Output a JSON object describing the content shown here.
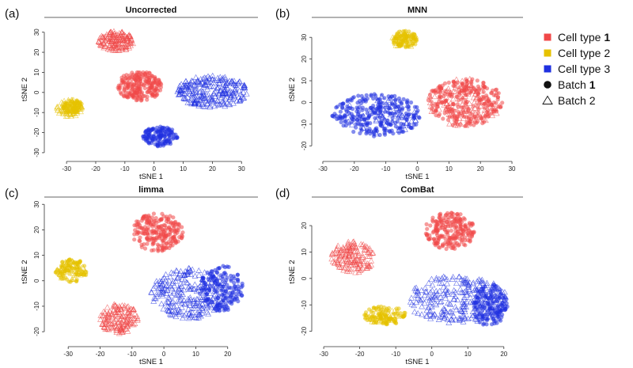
{
  "colors": {
    "cell_type_1": "#f04848",
    "cell_type_2": "#e6c200",
    "cell_type_3": "#1f30e0",
    "batch": "#111111",
    "axis": "#333333"
  },
  "legend": [
    {
      "kind": "cell",
      "group": "cell_type_1",
      "text": "Cell type",
      "num": "1",
      "icon": "red-square-icon"
    },
    {
      "kind": "cell",
      "group": "cell_type_2",
      "text": "Cell type 2",
      "num": "",
      "icon": "yellow-square-icon"
    },
    {
      "kind": "cell",
      "group": "cell_type_3",
      "text": "Cell type 3",
      "num": "",
      "icon": "blue-square-icon"
    },
    {
      "kind": "batch1",
      "group": "batch",
      "text": "Batch",
      "num": "1",
      "icon": "filled-circle-icon"
    },
    {
      "kind": "batch2",
      "group": "batch",
      "text": "Batch 2",
      "num": "",
      "icon": "open-triangle-icon"
    }
  ],
  "chart_data": [
    {
      "type": "scatter",
      "letter": "(a)",
      "title": "Uncorrected",
      "xlabel": "tSNE 1",
      "ylabel": "tSNE 2",
      "xlim": [
        -36,
        34
      ],
      "ylim": [
        -32,
        35
      ],
      "xticks": [
        -30,
        -20,
        -10,
        0,
        10,
        20,
        30
      ],
      "yticks": [
        -30,
        -20,
        -10,
        0,
        10,
        20,
        30
      ],
      "clusters": [
        {
          "cell_type": 1,
          "batch": 2,
          "cx": -13,
          "cy": 25.5,
          "rx": 6,
          "ry": 5,
          "n": 150
        },
        {
          "cell_type": 1,
          "batch": 1,
          "cx": -5,
          "cy": 3,
          "rx": 7.5,
          "ry": 7.5,
          "n": 220
        },
        {
          "cell_type": 2,
          "batch": 2,
          "cx": -29,
          "cy": -8,
          "rx": 4.5,
          "ry": 4.5,
          "n": 70
        },
        {
          "cell_type": 2,
          "batch": 1,
          "cx": -28,
          "cy": -7,
          "rx": 3.5,
          "ry": 3.5,
          "n": 70
        },
        {
          "cell_type": 3,
          "batch": 2,
          "cx": 20,
          "cy": 0.5,
          "rx": 12,
          "ry": 8,
          "n": 260
        },
        {
          "cell_type": 3,
          "batch": 1,
          "cx": 2,
          "cy": -22,
          "rx": 6,
          "ry": 5,
          "n": 140
        }
      ]
    },
    {
      "type": "scatter",
      "letter": "(b)",
      "title": "MNN",
      "xlabel": "tSNE 1",
      "ylabel": "tSNE 2",
      "xlim": [
        -32,
        32
      ],
      "ylim": [
        -25,
        37
      ],
      "xticks": [
        -30,
        -20,
        -10,
        0,
        10,
        20,
        30
      ],
      "yticks": [
        -20,
        -10,
        0,
        10,
        20,
        30
      ],
      "clusters": [
        {
          "cell_type": 2,
          "batch": 1,
          "cx": -4,
          "cy": 29,
          "rx": 4,
          "ry": 4,
          "n": 90
        },
        {
          "cell_type": 2,
          "batch": 2,
          "cx": -4,
          "cy": 29,
          "rx": 4,
          "ry": 4,
          "n": 30
        },
        {
          "cell_type": 1,
          "batch": 1,
          "cx": 15,
          "cy": 0,
          "rx": 12,
          "ry": 11,
          "n": 260
        },
        {
          "cell_type": 1,
          "batch": 2,
          "cx": 15,
          "cy": 0,
          "rx": 12,
          "ry": 11,
          "n": 90
        },
        {
          "cell_type": 3,
          "batch": 1,
          "cx": -13,
          "cy": -6,
          "rx": 14,
          "ry": 10,
          "n": 260
        },
        {
          "cell_type": 3,
          "batch": 2,
          "cx": -12,
          "cy": -6,
          "rx": 12,
          "ry": 9,
          "n": 60
        }
      ]
    },
    {
      "type": "scatter",
      "letter": "(c)",
      "title": "limma",
      "xlabel": "tSNE 1",
      "ylabel": "tSNE 2",
      "xlim": [
        -36,
        28
      ],
      "ylim": [
        -24,
        31
      ],
      "xticks": [
        -30,
        -20,
        -10,
        0,
        10,
        20
      ],
      "yticks": [
        -20,
        -10,
        0,
        10,
        20,
        30
      ],
      "clusters": [
        {
          "cell_type": 1,
          "batch": 1,
          "cx": -2,
          "cy": 19,
          "rx": 8,
          "ry": 7.5,
          "n": 220
        },
        {
          "cell_type": 2,
          "batch": 1,
          "cx": -29,
          "cy": 4,
          "rx": 5,
          "ry": 4.5,
          "n": 90
        },
        {
          "cell_type": 2,
          "batch": 2,
          "cx": -29,
          "cy": 4,
          "rx": 4.5,
          "ry": 4,
          "n": 40
        },
        {
          "cell_type": 1,
          "batch": 2,
          "cx": -14,
          "cy": -15,
          "rx": 6,
          "ry": 6,
          "n": 160
        },
        {
          "cell_type": 3,
          "batch": 2,
          "cx": 8,
          "cy": -5,
          "rx": 12,
          "ry": 10,
          "n": 260
        },
        {
          "cell_type": 3,
          "batch": 1,
          "cx": 18,
          "cy": -3,
          "rx": 7,
          "ry": 9,
          "n": 160
        }
      ]
    },
    {
      "type": "scatter",
      "letter": "(d)",
      "title": "ComBat",
      "xlabel": "tSNE 1",
      "ylabel": "tSNE 2",
      "xlim": [
        -32,
        24
      ],
      "ylim": [
        -24,
        29
      ],
      "xticks": [
        -30,
        -20,
        -10,
        0,
        10,
        20
      ],
      "yticks": [
        -20,
        -10,
        0,
        10,
        20
      ],
      "clusters": [
        {
          "cell_type": 1,
          "batch": 1,
          "cx": 5,
          "cy": 18,
          "rx": 7,
          "ry": 7,
          "n": 220
        },
        {
          "cell_type": 1,
          "batch": 2,
          "cx": -22,
          "cy": 8,
          "rx": 6,
          "ry": 6,
          "n": 160
        },
        {
          "cell_type": 2,
          "batch": 1,
          "cx": -13,
          "cy": -14,
          "rx": 6,
          "ry": 3.5,
          "n": 100
        },
        {
          "cell_type": 2,
          "batch": 2,
          "cx": -14,
          "cy": -14,
          "rx": 5,
          "ry": 3,
          "n": 40
        },
        {
          "cell_type": 3,
          "batch": 2,
          "cx": 7,
          "cy": -8,
          "rx": 14,
          "ry": 9,
          "n": 260
        },
        {
          "cell_type": 3,
          "batch": 1,
          "cx": 16,
          "cy": -10,
          "rx": 5,
          "ry": 8,
          "n": 150
        }
      ]
    }
  ]
}
